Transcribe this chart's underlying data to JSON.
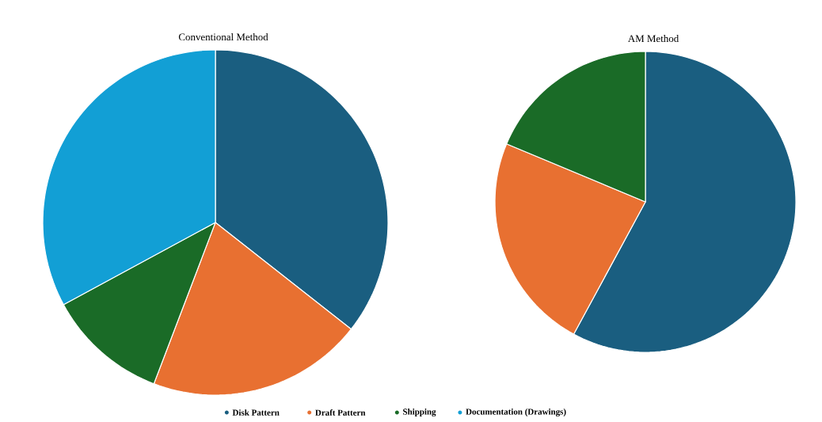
{
  "chart_data": [
    {
      "type": "pie",
      "title": "Conventional Method",
      "categories": [
        "Disk Pattern",
        "Draft Pattern",
        "Shipping",
        "Documentation (Drawings)"
      ],
      "values": [
        35.6,
        20.2,
        11.3,
        32.9
      ],
      "colors": [
        "#1a5e80",
        "#e87031",
        "#1a6b27",
        "#129fd5"
      ],
      "legend": "bottom"
    },
    {
      "type": "pie",
      "title": "AM Method",
      "categories": [
        null,
        null,
        null,
        null
      ],
      "values": [
        57.9,
        23.4,
        18.7,
        0
      ],
      "colors": [
        "#1a5e80",
        "#e87031",
        "#1a6b27",
        "#129fd5"
      ]
    }
  ]
}
